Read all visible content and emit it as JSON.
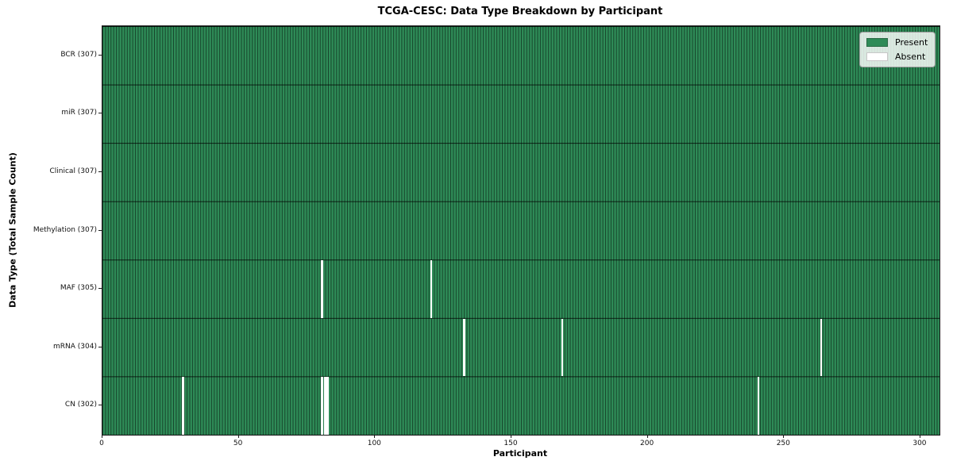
{
  "chart_data": {
    "type": "heatmap",
    "title": "TCGA-CESC: Data Type Breakdown by Participant",
    "xlabel": "Participant",
    "ylabel": "Data Type (Total Sample Count)",
    "xlim": [
      0,
      307
    ],
    "n_participants": 307,
    "x_ticks": [
      0,
      50,
      100,
      150,
      200,
      250,
      300
    ],
    "x_tick_labels": [
      "0",
      "50",
      "100",
      "150",
      "200",
      "250",
      "300"
    ],
    "grid": false,
    "legend_position": "upper right",
    "rows": [
      {
        "name": "BCR",
        "label": "BCR (307)",
        "present_count": 307,
        "absent_participants": []
      },
      {
        "name": "miR",
        "label": "miR (307)",
        "present_count": 307,
        "absent_participants": []
      },
      {
        "name": "Clinical",
        "label": "Clinical (307)",
        "present_count": 307,
        "absent_participants": []
      },
      {
        "name": "Methylation",
        "label": "Methylation (307)",
        "present_count": 307,
        "absent_participants": []
      },
      {
        "name": "MAF",
        "label": "MAF (305)",
        "present_count": 305,
        "absent_participants": [
          80,
          120
        ]
      },
      {
        "name": "mRNA",
        "label": "mRNA (304)",
        "present_count": 304,
        "absent_participants": [
          132,
          168,
          263
        ]
      },
      {
        "name": "CN",
        "label": "CN (302)",
        "present_count": 302,
        "absent_participants": [
          29,
          80,
          81,
          82,
          240
        ]
      }
    ],
    "legend": [
      {
        "label": "Present",
        "color": "#2e8b57",
        "edge": "#2a6b45"
      },
      {
        "label": "Absent",
        "color": "#ffffff",
        "edge": "#c8c8c8"
      }
    ],
    "colors": {
      "present": "#2e8b57",
      "absent": "#ffffff",
      "cell_edge": "#1d4a30",
      "frame": "#1a1a1a"
    }
  }
}
